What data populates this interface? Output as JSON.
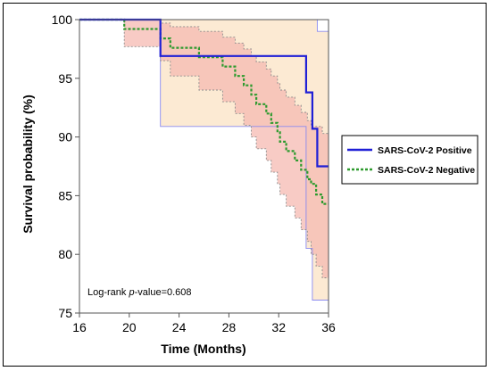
{
  "chart_data": {
    "type": "line",
    "step": true,
    "xlabel": "Time (Months)",
    "ylabel": "Survival probability (%)",
    "xlim": [
      16,
      36
    ],
    "ylim": [
      75,
      100
    ],
    "xticks": [
      16,
      20,
      24,
      28,
      32,
      36
    ],
    "yticks": [
      75,
      80,
      85,
      90,
      95,
      100
    ],
    "grid": false,
    "legend_position": "right",
    "annotation": {
      "prefix": "Log-rank ",
      "italic": "p",
      "suffix": "-value=0.608"
    },
    "series": [
      {
        "name": "SARS-CoV-2 Positive",
        "color": "#1f1fd6",
        "line_style": "solid",
        "ci_fill": "#fbe3c4",
        "ci_stroke": "#8a8af0",
        "steps": [
          [
            16,
            100
          ],
          [
            22.5,
            100
          ],
          [
            22.5,
            96.9
          ],
          [
            34.2,
            96.9
          ],
          [
            34.2,
            93.8
          ],
          [
            34.7,
            93.8
          ],
          [
            34.7,
            90.7
          ],
          [
            35.1,
            90.7
          ],
          [
            35.1,
            87.5
          ],
          [
            36,
            87.5
          ]
        ],
        "ci_upper": [
          [
            16,
            100
          ],
          [
            35.1,
            100
          ],
          [
            35.1,
            99.0
          ],
          [
            36,
            99.0
          ]
        ],
        "ci_lower": [
          [
            16,
            100
          ],
          [
            22.5,
            100
          ],
          [
            22.5,
            90.9
          ],
          [
            34.2,
            90.9
          ],
          [
            34.2,
            80.5
          ],
          [
            34.7,
            80.5
          ],
          [
            34.7,
            76.1
          ],
          [
            36,
            76.1
          ]
        ]
      },
      {
        "name": "SARS-CoV-2 Negative",
        "color": "#2e9a2e",
        "line_style": "dashed",
        "ci_fill": "#f5b9b1",
        "ci_stroke": "#8c8c8c",
        "steps": [
          [
            16,
            100
          ],
          [
            19.6,
            100
          ],
          [
            19.6,
            99.2
          ],
          [
            22.5,
            99.2
          ],
          [
            22.5,
            98.4
          ],
          [
            23.3,
            98.4
          ],
          [
            23.3,
            97.6
          ],
          [
            25.6,
            97.6
          ],
          [
            25.6,
            96.8
          ],
          [
            27.5,
            96.8
          ],
          [
            27.5,
            96.0
          ],
          [
            28.5,
            96.0
          ],
          [
            28.5,
            95.2
          ],
          [
            29.2,
            95.2
          ],
          [
            29.2,
            94.4
          ],
          [
            29.8,
            94.4
          ],
          [
            29.8,
            93.6
          ],
          [
            30.2,
            93.6
          ],
          [
            30.2,
            92.8
          ],
          [
            31.0,
            92.8
          ],
          [
            31.0,
            92.0
          ],
          [
            31.4,
            92.0
          ],
          [
            31.4,
            91.2
          ],
          [
            31.9,
            91.2
          ],
          [
            31.9,
            90.4
          ],
          [
            32.1,
            90.4
          ],
          [
            32.1,
            89.6
          ],
          [
            32.6,
            89.6
          ],
          [
            32.6,
            88.8
          ],
          [
            33.3,
            88.8
          ],
          [
            33.3,
            88.0
          ],
          [
            33.8,
            88.0
          ],
          [
            33.8,
            87.2
          ],
          [
            34.3,
            87.2
          ],
          [
            34.3,
            86.4
          ],
          [
            34.6,
            86.4
          ],
          [
            34.6,
            86.0
          ],
          [
            35.0,
            86.0
          ],
          [
            35.0,
            85.1
          ],
          [
            35.5,
            85.1
          ],
          [
            35.5,
            84.3
          ],
          [
            36,
            84.3
          ]
        ],
        "ci_upper": [
          [
            16,
            100
          ],
          [
            22.5,
            100
          ],
          [
            22.5,
            99.7
          ],
          [
            23.3,
            99.7
          ],
          [
            23.3,
            99.4
          ],
          [
            25.6,
            99.4
          ],
          [
            25.6,
            99.0
          ],
          [
            27.5,
            99.0
          ],
          [
            27.5,
            98.5
          ],
          [
            28.5,
            98.5
          ],
          [
            28.5,
            98.0
          ],
          [
            29.2,
            98.0
          ],
          [
            29.2,
            97.5
          ],
          [
            29.8,
            97.5
          ],
          [
            29.8,
            96.9
          ],
          [
            30.2,
            96.9
          ],
          [
            30.2,
            96.4
          ],
          [
            31.0,
            96.4
          ],
          [
            31.0,
            95.8
          ],
          [
            31.4,
            95.8
          ],
          [
            31.4,
            95.2
          ],
          [
            31.9,
            95.2
          ],
          [
            31.9,
            94.6
          ],
          [
            32.1,
            94.6
          ],
          [
            32.1,
            94.0
          ],
          [
            32.6,
            94.0
          ],
          [
            32.6,
            93.4
          ],
          [
            33.3,
            93.4
          ],
          [
            33.3,
            92.7
          ],
          [
            33.8,
            92.7
          ],
          [
            33.8,
            92.1
          ],
          [
            34.3,
            92.1
          ],
          [
            34.3,
            91.4
          ],
          [
            34.6,
            91.4
          ],
          [
            34.6,
            90.9
          ],
          [
            35.5,
            90.9
          ],
          [
            35.5,
            90.3
          ],
          [
            36,
            90.3
          ]
        ],
        "ci_lower": [
          [
            16,
            100
          ],
          [
            19.6,
            100
          ],
          [
            19.6,
            97.7
          ],
          [
            22.5,
            97.7
          ],
          [
            22.5,
            96.5
          ],
          [
            23.3,
            96.5
          ],
          [
            23.3,
            95.2
          ],
          [
            25.6,
            95.2
          ],
          [
            25.6,
            94.0
          ],
          [
            27.5,
            94.0
          ],
          [
            27.5,
            93.0
          ],
          [
            28.5,
            93.0
          ],
          [
            28.5,
            92.0
          ],
          [
            29.2,
            92.0
          ],
          [
            29.2,
            91.0
          ],
          [
            29.8,
            91.0
          ],
          [
            29.8,
            90.0
          ],
          [
            30.2,
            90.0
          ],
          [
            30.2,
            89.0
          ],
          [
            31.0,
            89.0
          ],
          [
            31.0,
            88.0
          ],
          [
            31.4,
            88.0
          ],
          [
            31.4,
            87.0
          ],
          [
            31.9,
            87.0
          ],
          [
            31.9,
            86.0
          ],
          [
            32.1,
            86.0
          ],
          [
            32.1,
            85.1
          ],
          [
            32.6,
            85.1
          ],
          [
            32.6,
            84.1
          ],
          [
            33.3,
            84.1
          ],
          [
            33.3,
            83.1
          ],
          [
            33.8,
            83.1
          ],
          [
            33.8,
            82.1
          ],
          [
            34.3,
            82.1
          ],
          [
            34.3,
            81.1
          ],
          [
            34.6,
            81.1
          ],
          [
            34.6,
            80.0
          ],
          [
            35.0,
            80.0
          ],
          [
            35.0,
            79.0
          ],
          [
            35.5,
            79.0
          ],
          [
            35.5,
            78.0
          ],
          [
            36,
            78.0
          ]
        ]
      }
    ]
  }
}
